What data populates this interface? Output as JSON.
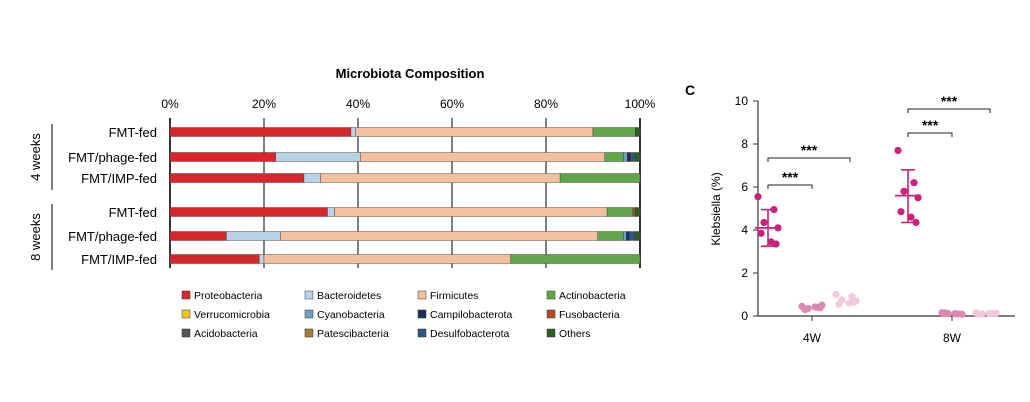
{
  "chart_data": [
    {
      "type": "bar",
      "orientation": "horizontal",
      "stacked": true,
      "title": "Microbiota Composition",
      "x_ticks": [
        "0%",
        "20%",
        "40%",
        "60%",
        "80%",
        "100%"
      ],
      "xlim": [
        0,
        100
      ],
      "grid": true,
      "groups": [
        {
          "label": "4 weeks",
          "rows": [
            "FMT-fed",
            "FMT/phage-fed",
            "FMT/IMP-fed"
          ]
        },
        {
          "label": "8 weeks",
          "rows": [
            "FMT-fed",
            "FMT/phage-fed",
            "FMT/IMP-fed"
          ]
        }
      ],
      "legend_position": "bottom",
      "series": [
        {
          "name": "Proteobacteria",
          "color": "#d9262b",
          "values": [
            38.5,
            22.5,
            28.5,
            33.5,
            12.0,
            19.0
          ]
        },
        {
          "name": "Bacteroidetes",
          "color": "#b8d2e8",
          "values": [
            1.0,
            18.0,
            3.5,
            1.5,
            11.5,
            1.0
          ]
        },
        {
          "name": "Firmicutes",
          "color": "#f2c09e",
          "values": [
            50.5,
            52.0,
            51.0,
            58.0,
            67.5,
            52.5
          ]
        },
        {
          "name": "Actinobacteria",
          "color": "#62a64b",
          "values": [
            9.0,
            4.0,
            17.0,
            5.5,
            5.5,
            27.5
          ]
        },
        {
          "name": "Verrucomicrobia",
          "color": "#f2c420",
          "values": [
            0,
            0,
            0,
            0,
            0,
            0
          ]
        },
        {
          "name": "Cyanobacteria",
          "color": "#6fa0c8",
          "values": [
            0,
            0.8,
            0,
            0,
            0.6,
            0
          ]
        },
        {
          "name": "Campilobacterota",
          "color": "#1c2e5c",
          "values": [
            0,
            0.7,
            0,
            0,
            0.6,
            0
          ]
        },
        {
          "name": "Fusobacteria",
          "color": "#b04e22",
          "values": [
            0,
            0.3,
            0,
            0.5,
            0,
            0
          ]
        },
        {
          "name": "Acidobacteria",
          "color": "#555555",
          "values": [
            0,
            0,
            0,
            0,
            0,
            0
          ]
        },
        {
          "name": "Patescibacteria",
          "color": "#a47e34",
          "values": [
            0,
            0,
            0,
            0,
            0,
            0
          ]
        },
        {
          "name": "Desulfobacterota",
          "color": "#2a5a86",
          "values": [
            0,
            0.7,
            0,
            0,
            1.2,
            0
          ]
        },
        {
          "name": "Others",
          "color": "#2f5d22",
          "values": [
            1.0,
            1.0,
            0,
            1.0,
            1.1,
            0
          ]
        }
      ]
    },
    {
      "type": "scatter",
      "panel_label": "C",
      "ylabel": "Klebsiella (%)",
      "ylim": [
        0,
        10
      ],
      "y_ticks": [
        0,
        2,
        4,
        6,
        8,
        10
      ],
      "categories": [
        "4W",
        "8W"
      ],
      "groups": [
        {
          "category": "4W",
          "series": [
            {
              "color": "#c8227a",
              "mean": 4.1,
              "sd_low": 3.25,
              "sd_high": 4.95,
              "points": [
                5.55,
                4.95,
                4.35,
                4.1,
                3.85,
                3.45,
                3.35
              ]
            },
            {
              "color": "#dd88b3",
              "mean": 0.4,
              "points": [
                0.45,
                0.4,
                0.35,
                0.5,
                0.3,
                0.42,
                0.38
              ]
            },
            {
              "color": "#f3c8dc",
              "mean": 0.75,
              "points": [
                1.0,
                0.9,
                0.75,
                0.7,
                0.55,
                0.6,
                0.65
              ]
            }
          ],
          "significance": [
            {
              "label": "***",
              "from": 0,
              "to": 1
            },
            {
              "label": "***",
              "from": 0,
              "to": 2
            }
          ]
        },
        {
          "category": "8W",
          "series": [
            {
              "color": "#c8227a",
              "mean": 5.6,
              "sd_low": 4.35,
              "sd_high": 6.8,
              "points": [
                7.7,
                6.2,
                5.8,
                5.5,
                4.85,
                4.6,
                4.35
              ]
            },
            {
              "color": "#dd88b3",
              "mean": 0.12,
              "points": [
                0.15,
                0.1,
                0.12,
                0.08,
                0.14,
                0.11
              ]
            },
            {
              "color": "#f3c8dc",
              "mean": 0.12,
              "points": [
                0.15,
                0.12,
                0.1,
                0.13,
                0.09,
                0.11
              ]
            }
          ],
          "significance": [
            {
              "label": "***",
              "from": 0,
              "to": 1
            },
            {
              "label": "***",
              "from": 0,
              "to": 2
            }
          ]
        }
      ]
    }
  ]
}
